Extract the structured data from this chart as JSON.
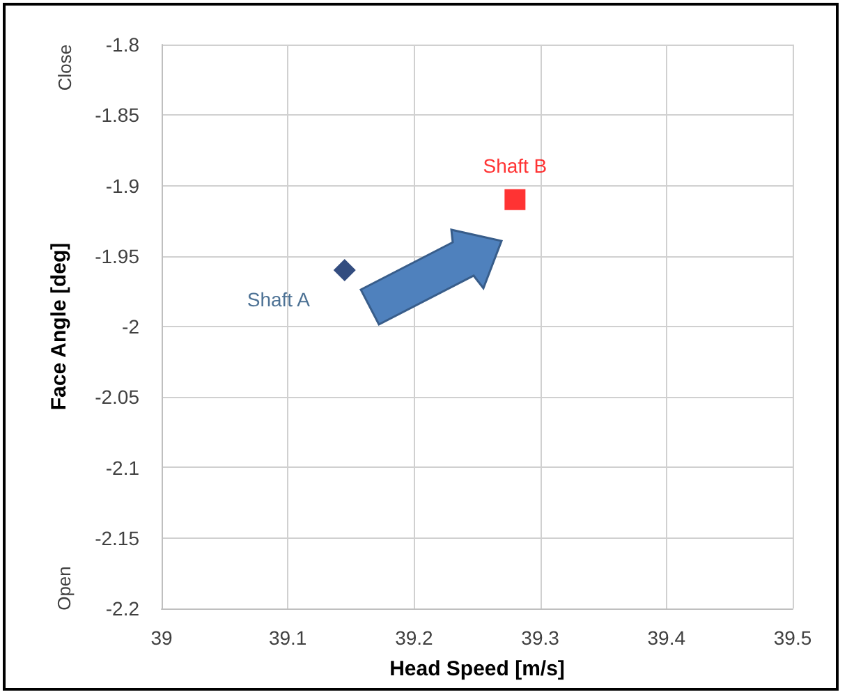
{
  "chart_data": {
    "type": "scatter",
    "xlabel": "Head Speed [m/s]",
    "ylabel": "Face Angle [deg]",
    "annotations": [
      "Close",
      "Open"
    ],
    "series": [
      {
        "name": "Shaft A",
        "color": "#002060",
        "marker": "diamond",
        "x": [
          39.145
        ],
        "values": [
          -1.96
        ]
      },
      {
        "name": "Shaft B",
        "color": "#ff0000",
        "marker": "square",
        "x": [
          39.28
        ],
        "values": [
          -1.91
        ]
      }
    ],
    "xlim": [
      39,
      39.5
    ],
    "xticks": [
      39,
      39.1,
      39.2,
      39.3,
      39.4,
      39.5
    ],
    "ylim": [
      -2.2,
      -1.8
    ],
    "yticks": [
      -2.2,
      -2.15,
      -2.1,
      -2.05,
      -2,
      -1.95,
      -1.9,
      -1.85,
      -1.8
    ],
    "grid": true,
    "legend": false
  }
}
